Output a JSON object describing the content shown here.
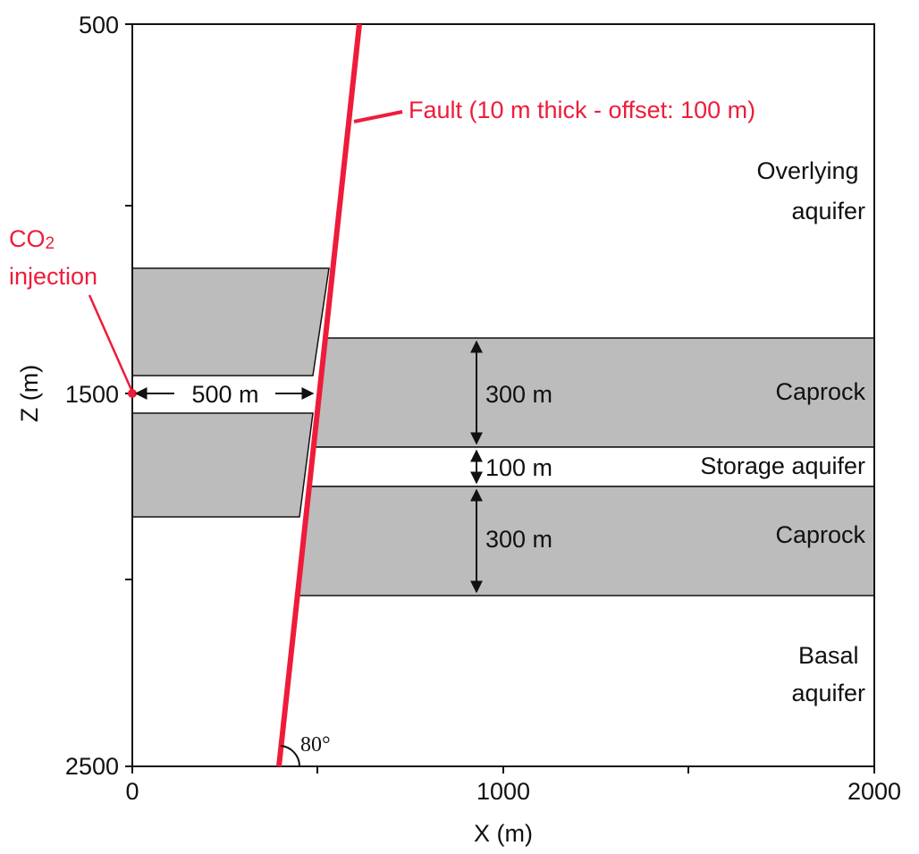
{
  "colors": {
    "fault": "#ee1c3a",
    "caprock": "#bcbcbc",
    "outline": "#111111",
    "annotation": "#ee1c3a"
  },
  "axes": {
    "x_title": "X (m)",
    "z_title": "Z (m)",
    "x_ticks": [
      "0",
      "1000",
      "2000"
    ],
    "z_ticks": [
      "500",
      "1500",
      "2500"
    ]
  },
  "layers": {
    "overlying": "Overlying\naquifer",
    "caprock_upper": "Caprock",
    "storage": "Storage aquifer",
    "caprock_lower": "Caprock",
    "basal": "Basal\naquifer"
  },
  "thickness": {
    "caprock_upper": "300 m",
    "storage": "100 m",
    "caprock_lower": "300 m"
  },
  "fault_label": "Fault (10 m thick - offset: 100 m)",
  "injection": {
    "label_line1": "CO",
    "label_sub": "2",
    "label_line2": "injection",
    "distance": "500 m"
  },
  "fault_angle": "80°"
}
